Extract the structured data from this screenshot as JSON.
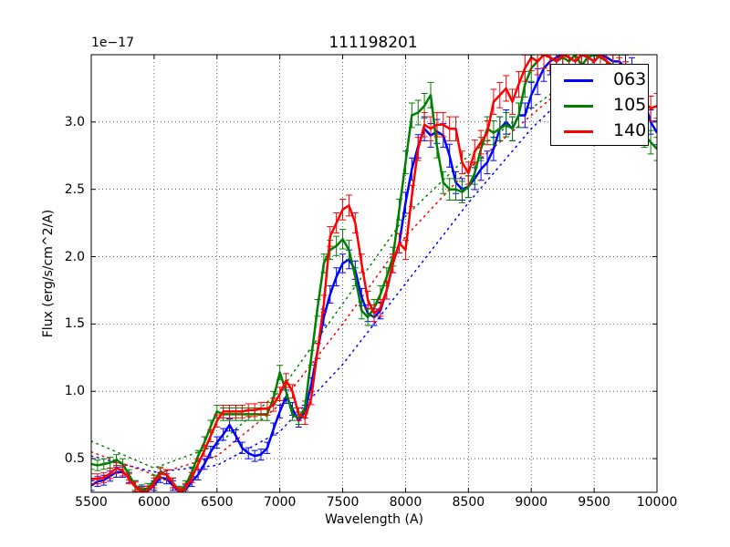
{
  "chart_data": {
    "type": "line",
    "title": "111198201",
    "xlabel": "Wavelength (A)",
    "ylabel": "Flux (erg/s/cm^2/A)",
    "y_offset_label": "1e−17",
    "xlim": [
      5500,
      10000
    ],
    "ylim": [
      0.25,
      3.5
    ],
    "xticks": [
      "5500",
      "6000",
      "6500",
      "7000",
      "7500",
      "8000",
      "8500",
      "9000",
      "9500",
      "10000"
    ],
    "yticks": [
      "0.5",
      "1.0",
      "1.5",
      "2.0",
      "2.5",
      "3.0"
    ],
    "grid": true,
    "legend_position": "upper right",
    "x": [
      5500,
      5550,
      5600,
      5650,
      5700,
      5750,
      5800,
      5850,
      5900,
      5950,
      6000,
      6050,
      6100,
      6150,
      6200,
      6250,
      6300,
      6350,
      6400,
      6450,
      6500,
      6550,
      6600,
      6650,
      6700,
      6750,
      6800,
      6850,
      6900,
      6950,
      7000,
      7050,
      7100,
      7150,
      7200,
      7250,
      7300,
      7350,
      7400,
      7450,
      7500,
      7550,
      7600,
      7650,
      7700,
      7750,
      7800,
      7850,
      7900,
      7950,
      8000,
      8050,
      8100,
      8150,
      8200,
      8250,
      8300,
      8350,
      8400,
      8450,
      8500,
      8550,
      8600,
      8650,
      8700,
      8750,
      8800,
      8850,
      8900,
      8950,
      9000,
      9050,
      9100,
      9150,
      9200,
      9250,
      9300,
      9350,
      9400,
      9450,
      9500,
      9550,
      9600,
      9650,
      9700,
      9750,
      9800,
      9850,
      9900,
      9950,
      10000
    ],
    "series": [
      {
        "name": "063",
        "color": "#0000ff",
        "values": [
          0.3,
          0.33,
          0.34,
          0.37,
          0.4,
          0.4,
          0.36,
          0.3,
          0.26,
          0.26,
          0.3,
          0.36,
          0.35,
          0.3,
          0.25,
          0.27,
          0.33,
          0.38,
          0.46,
          0.55,
          0.62,
          0.68,
          0.75,
          0.67,
          0.58,
          0.54,
          0.52,
          0.53,
          0.58,
          0.72,
          0.85,
          0.96,
          0.87,
          0.78,
          0.85,
          1.05,
          1.3,
          1.55,
          1.72,
          1.85,
          1.95,
          1.98,
          1.9,
          1.7,
          1.58,
          1.55,
          1.6,
          1.75,
          1.95,
          2.1,
          2.4,
          2.65,
          2.82,
          2.95,
          2.9,
          2.93,
          2.9,
          2.75,
          2.55,
          2.5,
          2.52,
          2.58,
          2.65,
          2.7,
          2.8,
          2.95,
          3.0,
          2.95,
          3.05,
          3.05,
          3.2,
          3.3,
          3.4,
          3.45,
          3.48,
          3.5,
          3.48,
          3.45,
          3.5,
          3.48,
          3.45,
          3.5,
          3.48,
          3.45,
          3.45,
          3.4,
          3.38,
          3.3,
          3.15,
          3.0,
          2.92
        ]
      },
      {
        "name": "105",
        "color": "#008000",
        "values": [
          0.46,
          0.45,
          0.46,
          0.47,
          0.49,
          0.46,
          0.38,
          0.3,
          0.27,
          0.28,
          0.34,
          0.4,
          0.38,
          0.32,
          0.26,
          0.3,
          0.4,
          0.52,
          0.62,
          0.74,
          0.85,
          0.83,
          0.83,
          0.83,
          0.83,
          0.83,
          0.83,
          0.83,
          0.83,
          0.95,
          1.14,
          1.0,
          0.83,
          0.8,
          0.88,
          1.25,
          1.62,
          1.95,
          2.05,
          2.08,
          2.13,
          2.05,
          1.85,
          1.6,
          1.55,
          1.62,
          1.72,
          1.85,
          2.0,
          2.35,
          2.7,
          3.05,
          3.07,
          3.12,
          3.2,
          2.82,
          2.55,
          2.5,
          2.5,
          2.48,
          2.52,
          2.62,
          2.8,
          2.95,
          2.92,
          2.95,
          2.98,
          2.95,
          3.05,
          3.28,
          3.4,
          3.45,
          3.5,
          3.48,
          3.45,
          3.48,
          3.45,
          3.5,
          3.42,
          3.48,
          3.5,
          3.48,
          3.45,
          3.42,
          3.4,
          3.35,
          3.2,
          3.05,
          2.9,
          2.85,
          2.8
        ]
      },
      {
        "name": "140",
        "color": "#ff0000",
        "values": [
          0.35,
          0.35,
          0.36,
          0.39,
          0.43,
          0.41,
          0.35,
          0.29,
          0.25,
          0.26,
          0.32,
          0.39,
          0.38,
          0.32,
          0.25,
          0.28,
          0.36,
          0.46,
          0.56,
          0.67,
          0.78,
          0.85,
          0.85,
          0.85,
          0.85,
          0.86,
          0.86,
          0.87,
          0.87,
          0.9,
          0.98,
          1.08,
          1.0,
          0.83,
          0.8,
          0.95,
          1.3,
          1.65,
          2.15,
          2.25,
          2.35,
          2.38,
          2.25,
          1.95,
          1.68,
          1.58,
          1.62,
          1.75,
          1.95,
          2.1,
          2.05,
          2.45,
          2.8,
          2.98,
          2.95,
          2.98,
          2.98,
          2.95,
          2.95,
          2.7,
          2.62,
          2.78,
          2.85,
          2.92,
          3.15,
          3.2,
          3.25,
          3.15,
          3.28,
          3.4,
          3.48,
          3.45,
          3.5,
          3.48,
          3.45,
          3.5,
          3.48,
          3.45,
          3.5,
          3.48,
          3.45,
          3.5,
          3.45,
          3.4,
          3.38,
          3.35,
          3.28,
          3.2,
          3.15,
          3.1,
          3.12
        ]
      }
    ],
    "dotted_continua": [
      {
        "name": "063",
        "color": "#0000ff",
        "x": [
          5500,
          6000,
          6500,
          7000,
          7500,
          8000,
          8500,
          9000,
          9500
        ],
        "values": [
          0.52,
          0.4,
          0.45,
          0.7,
          1.2,
          1.8,
          2.4,
          2.95,
          3.4
        ]
      },
      {
        "name": "105",
        "color": "#008000",
        "x": [
          5500,
          6000,
          6500,
          7000,
          7500,
          8000,
          8500,
          9000,
          9500
        ],
        "values": [
          0.63,
          0.43,
          0.6,
          1.0,
          1.65,
          2.3,
          2.75,
          3.1,
          3.45
        ]
      },
      {
        "name": "140",
        "color": "#ff0000",
        "x": [
          5500,
          6000,
          6500,
          7000,
          7500,
          8000,
          8500,
          9000,
          9500
        ],
        "values": [
          0.55,
          0.38,
          0.52,
          0.9,
          1.5,
          2.15,
          2.65,
          3.05,
          3.45
        ]
      }
    ]
  }
}
